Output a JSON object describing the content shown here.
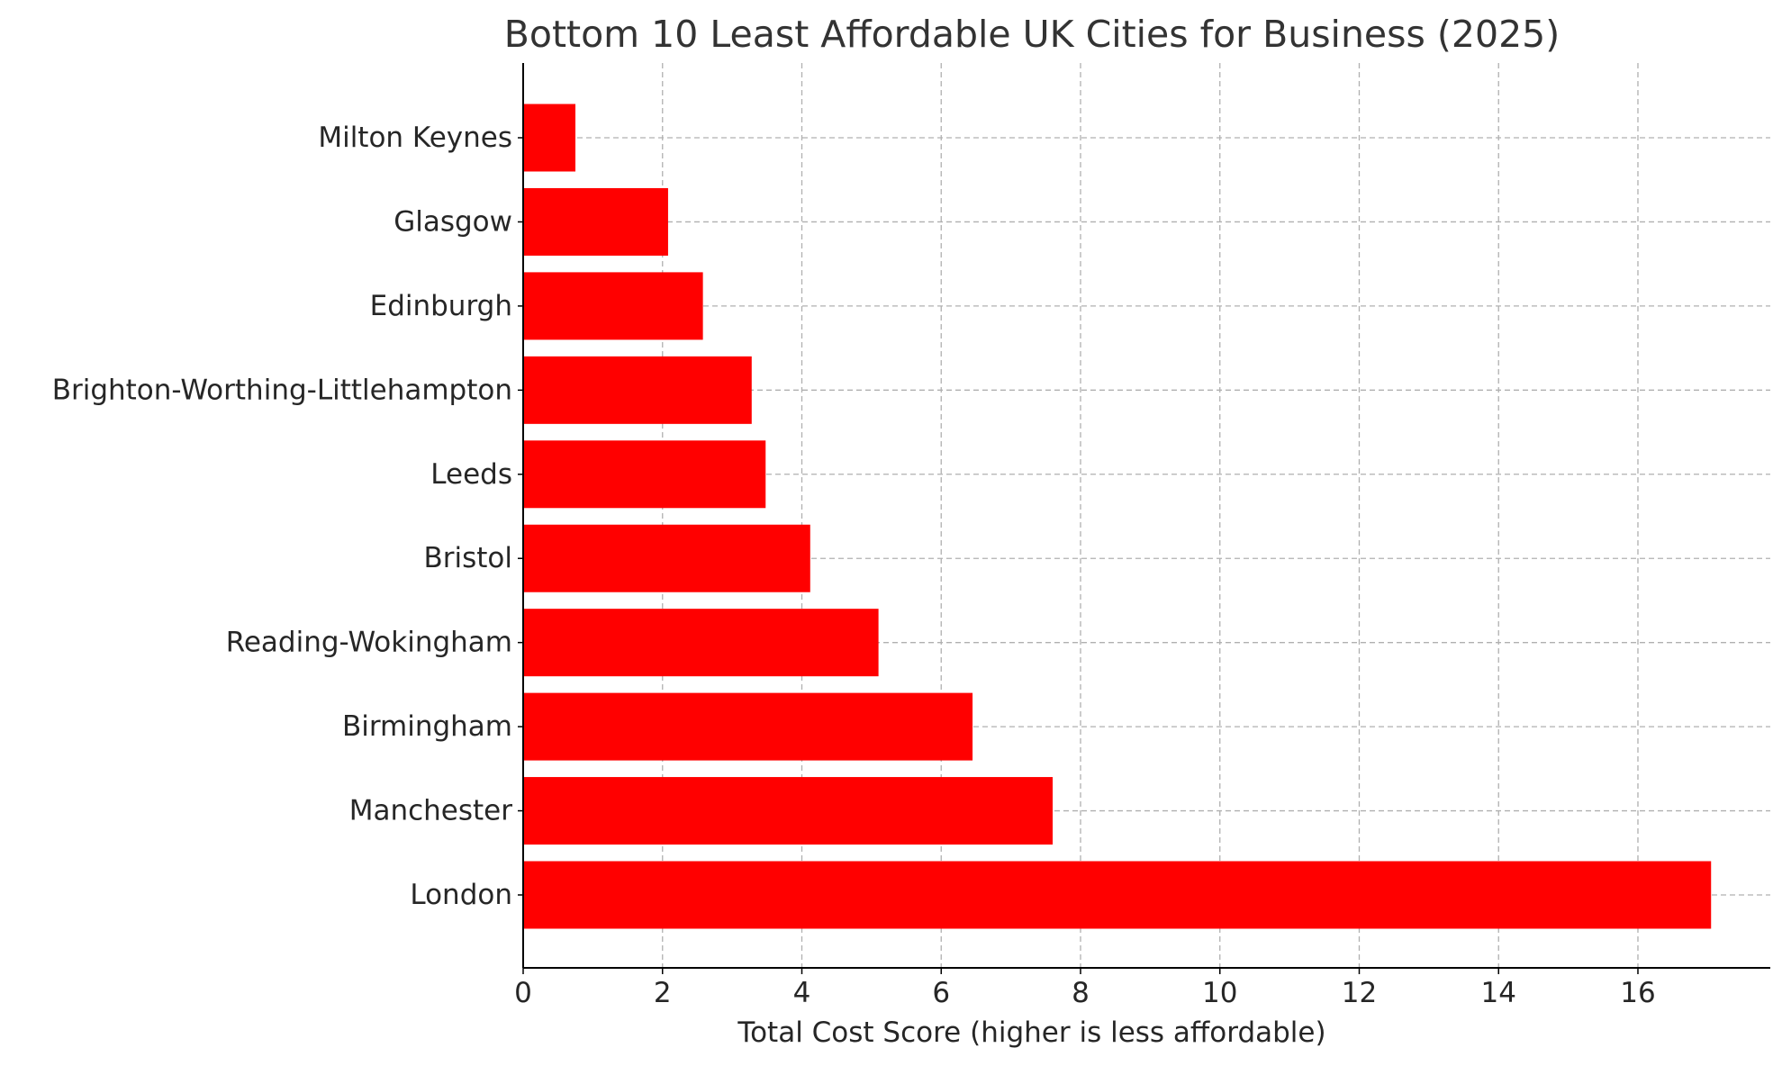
{
  "chart_data": {
    "type": "bar",
    "orientation": "horizontal",
    "title": "Bottom 10 Least Affordable UK Cities for Business (2025)",
    "xlabel": "Total Cost Score (higher is less affordable)",
    "ylabel": "",
    "categories": [
      "Milton Keynes",
      "Glasgow",
      "Edinburgh",
      "Brighton-Worthing-Littlehampton",
      "Leeds",
      "Bristol",
      "Reading-Wokingham",
      "Birmingham",
      "Manchester",
      "London"
    ],
    "values": [
      0.75,
      2.08,
      2.58,
      3.28,
      3.48,
      4.12,
      5.1,
      6.45,
      7.6,
      17.05
    ],
    "xlim": [
      0,
      17.9
    ],
    "xticks": [
      0,
      2,
      4,
      6,
      8,
      10,
      12,
      14,
      16
    ],
    "grid": true,
    "bar_color": "#ff0000",
    "grid_color": "#b0b0b0",
    "axis_color": "#000000",
    "text_color": "#262626",
    "title_color": "#333333"
  }
}
